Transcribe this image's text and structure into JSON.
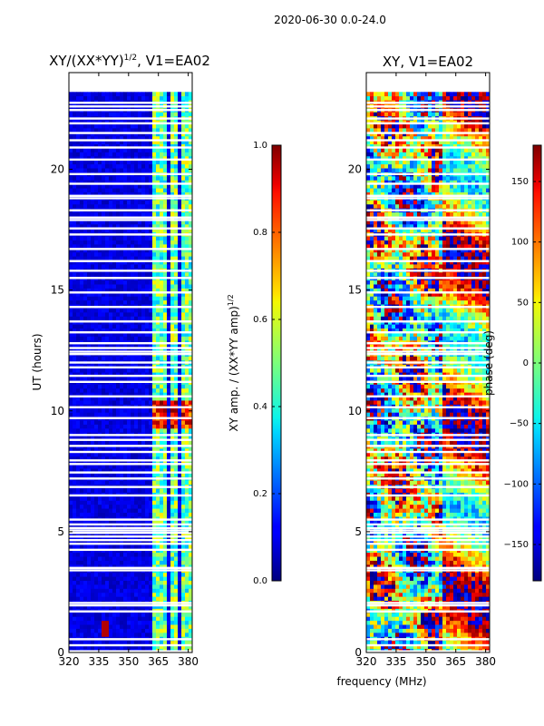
{
  "figure": {
    "suptitle": "2020-06-30 0.0-24.0",
    "xlabel_shared": "frequency (MHz)"
  },
  "chart_data": [
    {
      "type": "heatmap",
      "title": "XY/(XX*YY)^1/2, V1=EA02",
      "title_main": "XY/(XX*YY)",
      "title_exp": "1/2",
      "title_suffix": ", V1=EA02",
      "xlabel": "frequency (MHz)",
      "ylabel": "UT (hours)",
      "xlim": [
        320,
        382
      ],
      "ylim": [
        0,
        24
      ],
      "xticks": [
        320,
        335,
        350,
        365,
        380
      ],
      "yticks": [
        0,
        5,
        10,
        15,
        20
      ],
      "data_extent_hours": [
        0,
        23.2
      ],
      "colormap": "jet",
      "colorbar": {
        "label_main": "XY amp. / (XX*YY amp)",
        "label_exp": "1/2",
        "range": [
          0.0,
          1.0
        ],
        "ticks": [
          "0.0",
          "0.2",
          "0.4",
          "0.6",
          "0.8",
          "1.0"
        ],
        "tick_values": [
          0.0,
          0.2,
          0.4,
          0.6,
          0.8,
          1.0
        ]
      },
      "bright_channels_mhz": [
        364,
        366,
        368,
        372,
        374,
        378,
        380
      ],
      "high_amplitude_hours": [
        9.2,
        10.4
      ],
      "hotspot": {
        "freq_mhz": 338,
        "hour": 0.9,
        "value": 0.95
      }
    },
    {
      "type": "heatmap",
      "title": "XY, V1=EA02",
      "xlabel": "frequency (MHz)",
      "ylabel": "",
      "xlim": [
        320,
        382
      ],
      "ylim": [
        0,
        24
      ],
      "xticks": [
        320,
        335,
        350,
        365,
        380
      ],
      "yticks": [
        0,
        5,
        10,
        15,
        20
      ],
      "data_extent_hours": [
        0,
        23.2
      ],
      "colormap": "jet",
      "colorbar": {
        "label": "phase (deg)",
        "range": [
          -180,
          180
        ],
        "ticks": [
          "150",
          "100",
          "50",
          "0",
          "−50",
          "−100",
          "−150"
        ],
        "tick_values": [
          150,
          100,
          50,
          0,
          -50,
          -100,
          -150
        ]
      }
    }
  ],
  "flagged_hours": [
    0.05,
    0.3,
    0.55,
    1.7,
    1.95,
    2.05,
    3.4,
    3.5,
    4.25,
    4.5,
    4.65,
    4.8,
    4.95,
    5.05,
    5.15,
    5.3,
    5.5,
    6.5,
    6.85,
    7.2,
    7.45,
    7.8,
    7.95,
    8.3,
    8.55,
    8.8,
    9.0,
    9.7,
    10.15,
    10.6,
    11.2,
    11.45,
    11.8,
    12.0,
    12.35,
    12.45,
    12.6,
    12.8,
    13.25,
    13.7,
    14.3,
    14.9,
    15.5,
    15.8,
    16.2,
    16.7,
    17.3,
    17.55,
    17.9,
    18.0,
    18.3,
    18.8,
    18.9,
    19.4,
    19.8,
    20.4,
    20.9,
    21.2,
    21.5,
    21.9,
    22.1,
    22.45,
    22.6,
    22.75
  ]
}
